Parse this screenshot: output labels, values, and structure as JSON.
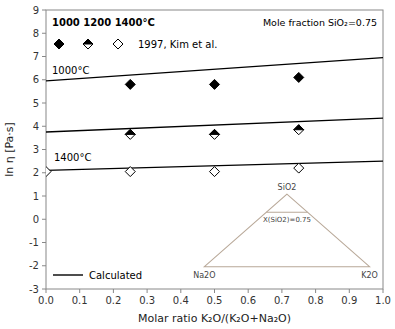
{
  "chart_data": {
    "type": "scatter",
    "xlabel": "Molar ratio K₂O/(K₂O+Na₂O)",
    "ylabel": "ln η [Pa·s]",
    "xlim": [
      0.0,
      1.0
    ],
    "ylim": [
      -3,
      9
    ],
    "xticks": [
      {
        "value": 0.0,
        "label": "0.0"
      },
      0.1,
      0.2,
      0.3,
      0.4,
      0.5,
      0.6,
      0.7,
      0.8,
      0.9,
      {
        "value": 1.0,
        "label": "1.0"
      }
    ],
    "yticks": [
      -3,
      -2,
      -1,
      0,
      1,
      2,
      3,
      4,
      5,
      6,
      7,
      8,
      9
    ],
    "grid": false,
    "series": [
      {
        "type": "line",
        "color": "#000000",
        "x": [
          0.0,
          1.0
        ],
        "values": [
          5.95,
          6.95
        ]
      },
      {
        "type": "line",
        "color": "#000000",
        "x": [
          0.0,
          1.0
        ],
        "values": [
          3.75,
          4.35
        ]
      },
      {
        "type": "line",
        "color": "#000000",
        "x": [
          0.0,
          1.0
        ],
        "values": [
          2.1,
          2.5
        ]
      },
      {
        "type": "scatter",
        "marker": "diamond-filled",
        "color": "#000000",
        "x": [
          0.25,
          0.5,
          0.75
        ],
        "values": [
          5.8,
          5.8,
          6.1
        ]
      },
      {
        "type": "scatter",
        "marker": "diamond-half",
        "color": "#000000",
        "x": [
          0.25,
          0.5,
          0.75
        ],
        "values": [
          3.65,
          3.65,
          3.85
        ]
      },
      {
        "type": "scatter",
        "marker": "diamond-open",
        "color": "#000000",
        "x": [
          0.0,
          0.25,
          0.5,
          0.75
        ],
        "values": [
          2.05,
          2.05,
          2.05,
          2.2
        ]
      }
    ],
    "annotations": [
      "1000°C",
      "1400°C",
      "1000 1200 1400°C",
      "1997, Kim et al.",
      "Mole fraction SiO₂=0.75",
      "Calculated"
    ],
    "inset": {
      "type": "ternary",
      "labels": [
        "SiO2",
        "Na2O",
        "K2O"
      ],
      "line_value": 0.75,
      "line_label": "X(SiO2)=0.75",
      "color": "#b8a898"
    }
  }
}
